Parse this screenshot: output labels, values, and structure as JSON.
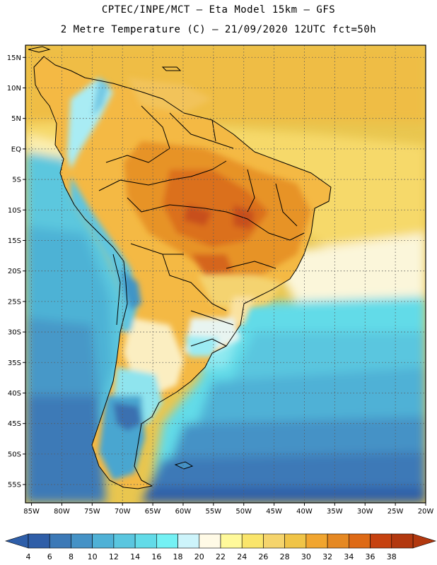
{
  "header": {
    "line1": "CPTEC/INPE/MCT –  Eta Model 15km – GFS",
    "line2": "2 Metre Temperature (C) – 21/09/2020 12UTC fct=50h"
  },
  "map": {
    "lon_range": [
      -86,
      -20
    ],
    "lat_range": [
      -58,
      17
    ],
    "lat_ticks": [
      "15N",
      "10N",
      "5N",
      "EQ",
      "5S",
      "10S",
      "15S",
      "20S",
      "25S",
      "30S",
      "35S",
      "40S",
      "45S",
      "50S",
      "55S"
    ],
    "lon_ticks": [
      "85W",
      "80W",
      "75W",
      "70W",
      "65W",
      "60W",
      "55W",
      "50W",
      "45W",
      "40W",
      "35W",
      "30W",
      "25W",
      "20W"
    ],
    "ocean_color": "#e8c55a"
  },
  "colorbar": {
    "values": [
      "4",
      "6",
      "8",
      "10",
      "12",
      "14",
      "16",
      "18",
      "20",
      "22",
      "24",
      "26",
      "28",
      "30",
      "32",
      "34",
      "36",
      "38"
    ],
    "colors": [
      "#2f5ea8",
      "#3c79b7",
      "#4592c6",
      "#4fb1d6",
      "#5ac6df",
      "#62dbe8",
      "#74f1f4",
      "#cdf4fb",
      "#fffae6",
      "#fff99a",
      "#fae56b",
      "#f5d46c",
      "#f0c447",
      "#f1a52f",
      "#e58822",
      "#de6a16",
      "#c64210",
      "#b2380f"
    ],
    "left_arrow_color": "#2e5ea9",
    "right_arrow_color": "#b2380f"
  }
}
